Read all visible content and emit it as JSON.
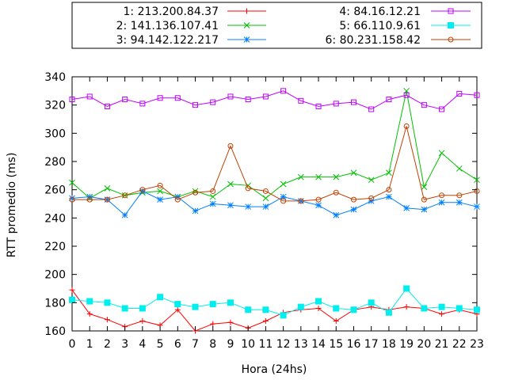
{
  "chart_data": {
    "type": "line",
    "title": "",
    "xlabel": "Hora (24hs)",
    "ylabel": "RTT promedio (ms)",
    "xlim": [
      0,
      23
    ],
    "ylim": [
      160,
      340
    ],
    "x": [
      0,
      1,
      2,
      3,
      4,
      5,
      6,
      7,
      8,
      9,
      10,
      11,
      12,
      13,
      14,
      15,
      16,
      17,
      18,
      19,
      20,
      21,
      22,
      23
    ],
    "x_ticks": [
      "0",
      "1",
      "2",
      "3",
      "4",
      "5",
      "6",
      "7",
      "8",
      "9",
      "10",
      "11",
      "12",
      "13",
      "14",
      "15",
      "16",
      "17",
      "18",
      "19",
      "20",
      "21",
      "22",
      "23"
    ],
    "y_ticks": [
      "160",
      "180",
      "200",
      "220",
      "240",
      "260",
      "280",
      "300",
      "320",
      "340"
    ],
    "grid": false,
    "legend_position": "top",
    "series": [
      {
        "name": "1: 213.200.84.37",
        "color": "#ff0000",
        "marker": "plus",
        "values": [
          189,
          172,
          168,
          163,
          167,
          164,
          175,
          160,
          165,
          166,
          162,
          167,
          173,
          175,
          176,
          167,
          175,
          177,
          175,
          177,
          176,
          172,
          175,
          172
        ]
      },
      {
        "name": "2: 141.136.107.41",
        "color": "#00c000",
        "marker": "x",
        "values": [
          265,
          254,
          261,
          256,
          258,
          259,
          255,
          259,
          255,
          264,
          263,
          254,
          264,
          269,
          269,
          269,
          272,
          267,
          272,
          330,
          262,
          286,
          275,
          267
        ]
      },
      {
        "name": "3: 94.142.122.217",
        "color": "#0080ff",
        "marker": "star",
        "values": [
          254,
          255,
          253,
          242,
          259,
          253,
          255,
          245,
          250,
          249,
          248,
          248,
          255,
          252,
          249,
          242,
          246,
          252,
          255,
          247,
          246,
          251,
          251,
          248
        ]
      },
      {
        "name": "4: 84.16.12.21",
        "color": "#c000ff",
        "marker": "box",
        "values": [
          324,
          326,
          319,
          324,
          321,
          325,
          325,
          320,
          322,
          326,
          324,
          326,
          330,
          323,
          319,
          321,
          322,
          317,
          324,
          327,
          320,
          317,
          328,
          327
        ]
      },
      {
        "name": "5: 66.110.9.61",
        "color": "#00eeee",
        "marker": "filledbox",
        "values": [
          182,
          181,
          180,
          176,
          176,
          184,
          179,
          177,
          179,
          180,
          175,
          175,
          171,
          177,
          181,
          176,
          175,
          180,
          173,
          190,
          176,
          177,
          176,
          175
        ]
      },
      {
        "name": "6: 80.231.158.42",
        "color": "#c04000",
        "marker": "circle",
        "values": [
          253,
          253,
          253,
          256,
          260,
          263,
          253,
          258,
          259,
          291,
          261,
          259,
          252,
          252,
          253,
          258,
          253,
          254,
          260,
          305,
          253,
          256,
          256,
          259
        ]
      }
    ]
  }
}
